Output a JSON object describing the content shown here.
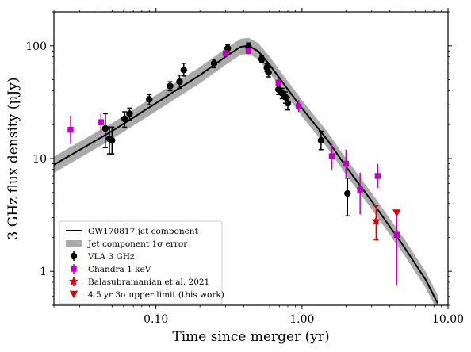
{
  "chart_data": {
    "type": "scatter",
    "title": "",
    "xlabel": "Time since merger (yr)",
    "ylabel": "3 GHz flux density (μJy)",
    "xscale": "log",
    "yscale": "log",
    "xlim": [
      0.02,
      10.0
    ],
    "ylim": [
      0.5,
      200
    ],
    "x_ticks": [
      0.1,
      1.0,
      10.0
    ],
    "x_tick_labels": [
      "0.10",
      "1.00",
      "10.00"
    ],
    "y_ticks": [
      1,
      10,
      100
    ],
    "y_tick_labels": [
      "1",
      "10",
      "100"
    ],
    "grid": false,
    "legend_position": "lower-left",
    "legend": [
      "GW170817 jet component",
      "Jet component 1σ error",
      "VLA 3 GHz",
      "Chandra 1 keV",
      "Balasubramanian et al. 2021",
      "4.5 yr 3σ upper limit (this work)"
    ],
    "model": {
      "name": "GW170817 jet component",
      "color": "#000000",
      "x": [
        0.02,
        0.05,
        0.1,
        0.2,
        0.3,
        0.38,
        0.43,
        0.5,
        0.6,
        0.8,
        1.0,
        1.5,
        2.0,
        3.0,
        5.0,
        7.0,
        8.5
      ],
      "y": [
        8.8,
        17.5,
        31,
        55,
        80,
        98,
        100,
        90,
        68,
        41,
        28,
        14.5,
        8.5,
        4.2,
        1.65,
        0.85,
        0.52
      ],
      "band_factor": 1.18
    },
    "series": [
      {
        "name": "VLA 3 GHz",
        "color": "#000000",
        "marker": "circle",
        "points": [
          {
            "x": 0.045,
            "y": 18.5,
            "lo": 12.5,
            "hi": 25
          },
          {
            "x": 0.048,
            "y": 15,
            "lo": 11,
            "hi": 19
          },
          {
            "x": 0.05,
            "y": 14.5,
            "lo": 11,
            "hi": 19
          },
          {
            "x": 0.061,
            "y": 22.5,
            "lo": 19,
            "hi": 26
          },
          {
            "x": 0.066,
            "y": 25,
            "lo": 22,
            "hi": 28
          },
          {
            "x": 0.09,
            "y": 33.5,
            "lo": 30,
            "hi": 37
          },
          {
            "x": 0.125,
            "y": 44,
            "lo": 40,
            "hi": 48
          },
          {
            "x": 0.145,
            "y": 48,
            "lo": 42,
            "hi": 55
          },
          {
            "x": 0.155,
            "y": 61,
            "lo": 54,
            "hi": 70
          },
          {
            "x": 0.25,
            "y": 70,
            "lo": 64,
            "hi": 76
          },
          {
            "x": 0.31,
            "y": 95,
            "lo": 88,
            "hi": 102
          },
          {
            "x": 0.43,
            "y": 98,
            "lo": 90,
            "hi": 106
          },
          {
            "x": 0.53,
            "y": 76,
            "lo": 71,
            "hi": 81
          },
          {
            "x": 0.575,
            "y": 64,
            "lo": 59,
            "hi": 69
          },
          {
            "x": 0.59,
            "y": 58,
            "lo": 53,
            "hi": 64
          },
          {
            "x": 0.69,
            "y": 41,
            "lo": 37,
            "hi": 45
          },
          {
            "x": 0.73,
            "y": 38,
            "lo": 34,
            "hi": 42
          },
          {
            "x": 0.77,
            "y": 35,
            "lo": 31,
            "hi": 39
          },
          {
            "x": 0.8,
            "y": 31,
            "lo": 27,
            "hi": 35
          },
          {
            "x": 1.35,
            "y": 14.5,
            "lo": 12,
            "hi": 17.5
          },
          {
            "x": 2.05,
            "y": 4.9,
            "lo": 3.1,
            "hi": 6.7
          }
        ]
      },
      {
        "name": "Chandra 1 keV",
        "color": "#c000c0",
        "marker": "square",
        "points": [
          {
            "x": 0.026,
            "y": 18,
            "lo": 13.5,
            "hi": 24
          },
          {
            "x": 0.042,
            "y": 21,
            "lo": 17,
            "hi": 25
          },
          {
            "x": 0.3,
            "y": 86,
            "lo": 80,
            "hi": 92
          },
          {
            "x": 0.43,
            "y": 90,
            "lo": 84,
            "hi": 96
          },
          {
            "x": 0.69,
            "y": 47,
            "lo": 43,
            "hi": 52
          },
          {
            "x": 0.95,
            "y": 29,
            "lo": 26,
            "hi": 33
          },
          {
            "x": 1.6,
            "y": 10.5,
            "lo": 8,
            "hi": 13.5
          },
          {
            "x": 2.0,
            "y": 9,
            "lo": 6.8,
            "hi": 12
          },
          {
            "x": 2.5,
            "y": 5.3,
            "lo": 3.2,
            "hi": 7.5
          },
          {
            "x": 3.3,
            "y": 7,
            "lo": 5.5,
            "hi": 9
          },
          {
            "x": 4.45,
            "y": 2.1,
            "lo": 0.75,
            "hi": 3.3
          }
        ]
      },
      {
        "name": "Balasubramanian et al. 2021",
        "color": "#e00000",
        "marker": "star",
        "points": [
          {
            "x": 3.22,
            "y": 2.8,
            "lo": 1.9,
            "hi": 3.8
          }
        ]
      },
      {
        "name": "4.5 yr 3σ upper limit (this work)",
        "color": "#e00000",
        "marker": "triangle-down",
        "points": [
          {
            "x": 4.45,
            "y": 3.3
          }
        ]
      }
    ]
  }
}
